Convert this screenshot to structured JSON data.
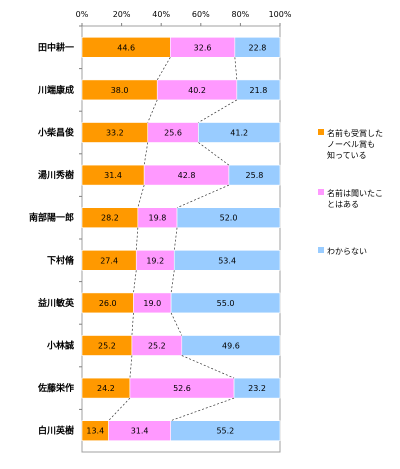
{
  "chart_data": {
    "type": "bar",
    "orientation": "horizontal",
    "stacked": true,
    "xlim": [
      0,
      100
    ],
    "x_ticks": [
      "0%",
      "20%",
      "40%",
      "60%",
      "80%",
      "100%"
    ],
    "categories": [
      "田中耕一",
      "川端康成",
      "小柴昌俊",
      "湯川秀樹",
      "南部陽一郎",
      "下村脩",
      "益川敏英",
      "小林誠",
      "佐藤栄作",
      "白川英樹"
    ],
    "series": [
      {
        "name": "名前も受賞したノーベル賞も知っている",
        "color": "#ff9900",
        "values": [
          44.6,
          38.0,
          33.2,
          31.4,
          28.2,
          27.4,
          26.0,
          25.2,
          24.2,
          13.4
        ],
        "labels": [
          "44.6",
          "38.0",
          "33.2",
          "31.4",
          "28.2",
          "27.4",
          "26.0",
          "25.2",
          "24.2",
          "13.4"
        ]
      },
      {
        "name": "名前は聞いたことはある",
        "color": "#ff99ff",
        "values": [
          32.6,
          40.2,
          25.6,
          42.8,
          19.8,
          19.2,
          19.0,
          25.2,
          52.6,
          31.4
        ],
        "labels": [
          "32.6",
          "40.2",
          "25.6",
          "42.8",
          "19.8",
          "19.2",
          "19.0",
          "25.2",
          "52.6",
          "31.4"
        ]
      },
      {
        "name": "わからない",
        "color": "#99ccff",
        "values": [
          22.8,
          21.8,
          41.2,
          25.8,
          52.0,
          53.4,
          55.0,
          49.6,
          23.2,
          55.2
        ],
        "labels": [
          "22.8",
          "21.8",
          "41.2",
          "25.8",
          "52.0",
          "53.4",
          "55.0",
          "49.6",
          "23.2",
          "55.2"
        ]
      }
    ],
    "legend": {
      "position": "right",
      "items": [
        {
          "lines": [
            "名前も受賞した",
            "ノーベル賞も",
            "知っている"
          ],
          "color": "#ff9900"
        },
        {
          "lines": [
            "名前は聞いたこ",
            "とはある"
          ],
          "color": "#ff99ff"
        },
        {
          "lines": [
            "わからない"
          ],
          "color": "#99ccff"
        }
      ]
    },
    "connector_lines": "dashed",
    "grid": false
  }
}
